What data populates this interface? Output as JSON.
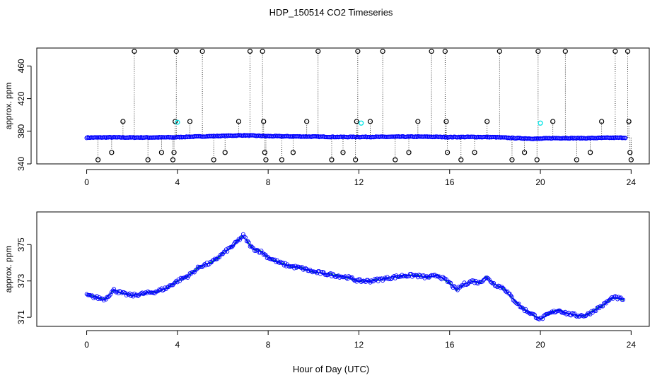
{
  "title": "HDP_150514  CO2 Timeseries",
  "xlabel": "Hour of Day (UTC)",
  "colors": {
    "main": "#0000ff",
    "flag": "#00e5e5",
    "outlier": "#000000",
    "alt": "#00cc00"
  },
  "chart_data": [
    {
      "type": "scatter",
      "ylabel": "approx. ppm",
      "xlim": [
        -2.2,
        24.8
      ],
      "ylim": [
        340,
        482
      ],
      "xticks": [
        0,
        4,
        8,
        12,
        16,
        20,
        24
      ],
      "yticks": [
        340,
        380,
        420,
        460
      ],
      "yticklabels": [
        "340",
        "380",
        "420",
        "460"
      ],
      "outlier_levels": [
        345,
        354,
        392,
        478
      ],
      "main_series": {
        "name": "",
        "x": [
          0,
          1,
          2,
          3,
          3.9,
          4.5,
          5,
          6,
          6.9,
          8,
          9,
          10,
          11,
          12,
          13,
          14,
          15,
          16,
          17,
          18,
          19,
          19.9,
          20.5,
          21,
          22,
          23,
          23.7
        ],
        "y": [
          372.2,
          372.5,
          372.3,
          372.4,
          372.6,
          373.2,
          373.6,
          374.3,
          375.0,
          374.0,
          373.7,
          373.4,
          373.0,
          373.0,
          373.1,
          373.3,
          373.3,
          372.8,
          373.0,
          372.7,
          371.5,
          370.8,
          371.5,
          371.6,
          371.5,
          372.0,
          372.1
        ]
      },
      "flagged_points": {
        "x": [
          4.0,
          12.1,
          20.0
        ],
        "y": [
          391,
          390,
          390
        ]
      },
      "outliers": {
        "x": [
          0.5,
          1.1,
          1.6,
          2.1,
          2.7,
          3.3,
          3.8,
          3.85,
          3.9,
          3.95,
          4.55,
          5.1,
          5.6,
          6.1,
          6.7,
          7.2,
          7.75,
          7.8,
          7.85,
          7.9,
          8.6,
          9.1,
          9.7,
          10.2,
          10.8,
          11.3,
          11.85,
          11.9,
          11.95,
          12.5,
          13.05,
          13.6,
          14.2,
          14.6,
          15.2,
          15.8,
          15.85,
          15.9,
          16.5,
          17.1,
          17.65,
          18.2,
          18.75,
          19.3,
          19.85,
          19.9,
          20.55,
          21.1,
          21.6,
          22.2,
          22.7,
          23.3,
          23.85,
          23.9,
          23.95,
          24.0
        ],
        "y": [
          345,
          354,
          392,
          478,
          345,
          354,
          345,
          354,
          392,
          478,
          392,
          478,
          345,
          354,
          392,
          478,
          478,
          392,
          354,
          345,
          345,
          354,
          392,
          478,
          345,
          354,
          345,
          392,
          478,
          392,
          478,
          345,
          354,
          392,
          478,
          478,
          392,
          354,
          345,
          354,
          392,
          478,
          345,
          354,
          345,
          478,
          392,
          478,
          345,
          354,
          392,
          478,
          478,
          392,
          354,
          345
        ]
      }
    },
    {
      "type": "line",
      "ylabel": "approx. ppm",
      "xlim": [
        -2.2,
        24.8
      ],
      "ylim": [
        370.5,
        376.8
      ],
      "xticks": [
        0,
        4,
        8,
        12,
        16,
        20,
        24
      ],
      "yticks": [
        371,
        373,
        375
      ],
      "yticklabels": [
        "371",
        "373",
        "375"
      ],
      "series": [
        {
          "name": "",
          "x": [
            0,
            0.4,
            0.8,
            1.2,
            1.6,
            2,
            2.5,
            3,
            3.5,
            4,
            4.5,
            5,
            5.5,
            6,
            6.5,
            6.9,
            7.3,
            7.7,
            8,
            8.5,
            9,
            9.5,
            10,
            10.5,
            11,
            11.5,
            12,
            12.5,
            13,
            13.5,
            14,
            14.5,
            15,
            15.5,
            16,
            16.3,
            16.6,
            17,
            17.3,
            17.6,
            18,
            18.4,
            18.8,
            19.2,
            19.6,
            20,
            20.4,
            20.8,
            21.2,
            21.6,
            22,
            22.4,
            22.8,
            23.2,
            23.6
          ],
          "y": [
            372.2,
            372.1,
            372.0,
            372.5,
            372.3,
            372.2,
            372.3,
            372.4,
            372.6,
            373.0,
            373.3,
            373.8,
            374.0,
            374.5,
            375.0,
            375.5,
            374.8,
            374.6,
            374.3,
            374.0,
            373.8,
            373.7,
            373.5,
            373.4,
            373.3,
            373.2,
            373.0,
            373.0,
            373.1,
            373.2,
            373.3,
            373.3,
            373.2,
            373.3,
            372.9,
            372.5,
            372.8,
            373.0,
            372.9,
            373.2,
            372.8,
            372.6,
            372.0,
            371.5,
            371.2,
            370.9,
            371.2,
            371.4,
            371.2,
            371.1,
            371.1,
            371.4,
            371.7,
            372.1,
            372.0
          ]
        }
      ]
    }
  ]
}
